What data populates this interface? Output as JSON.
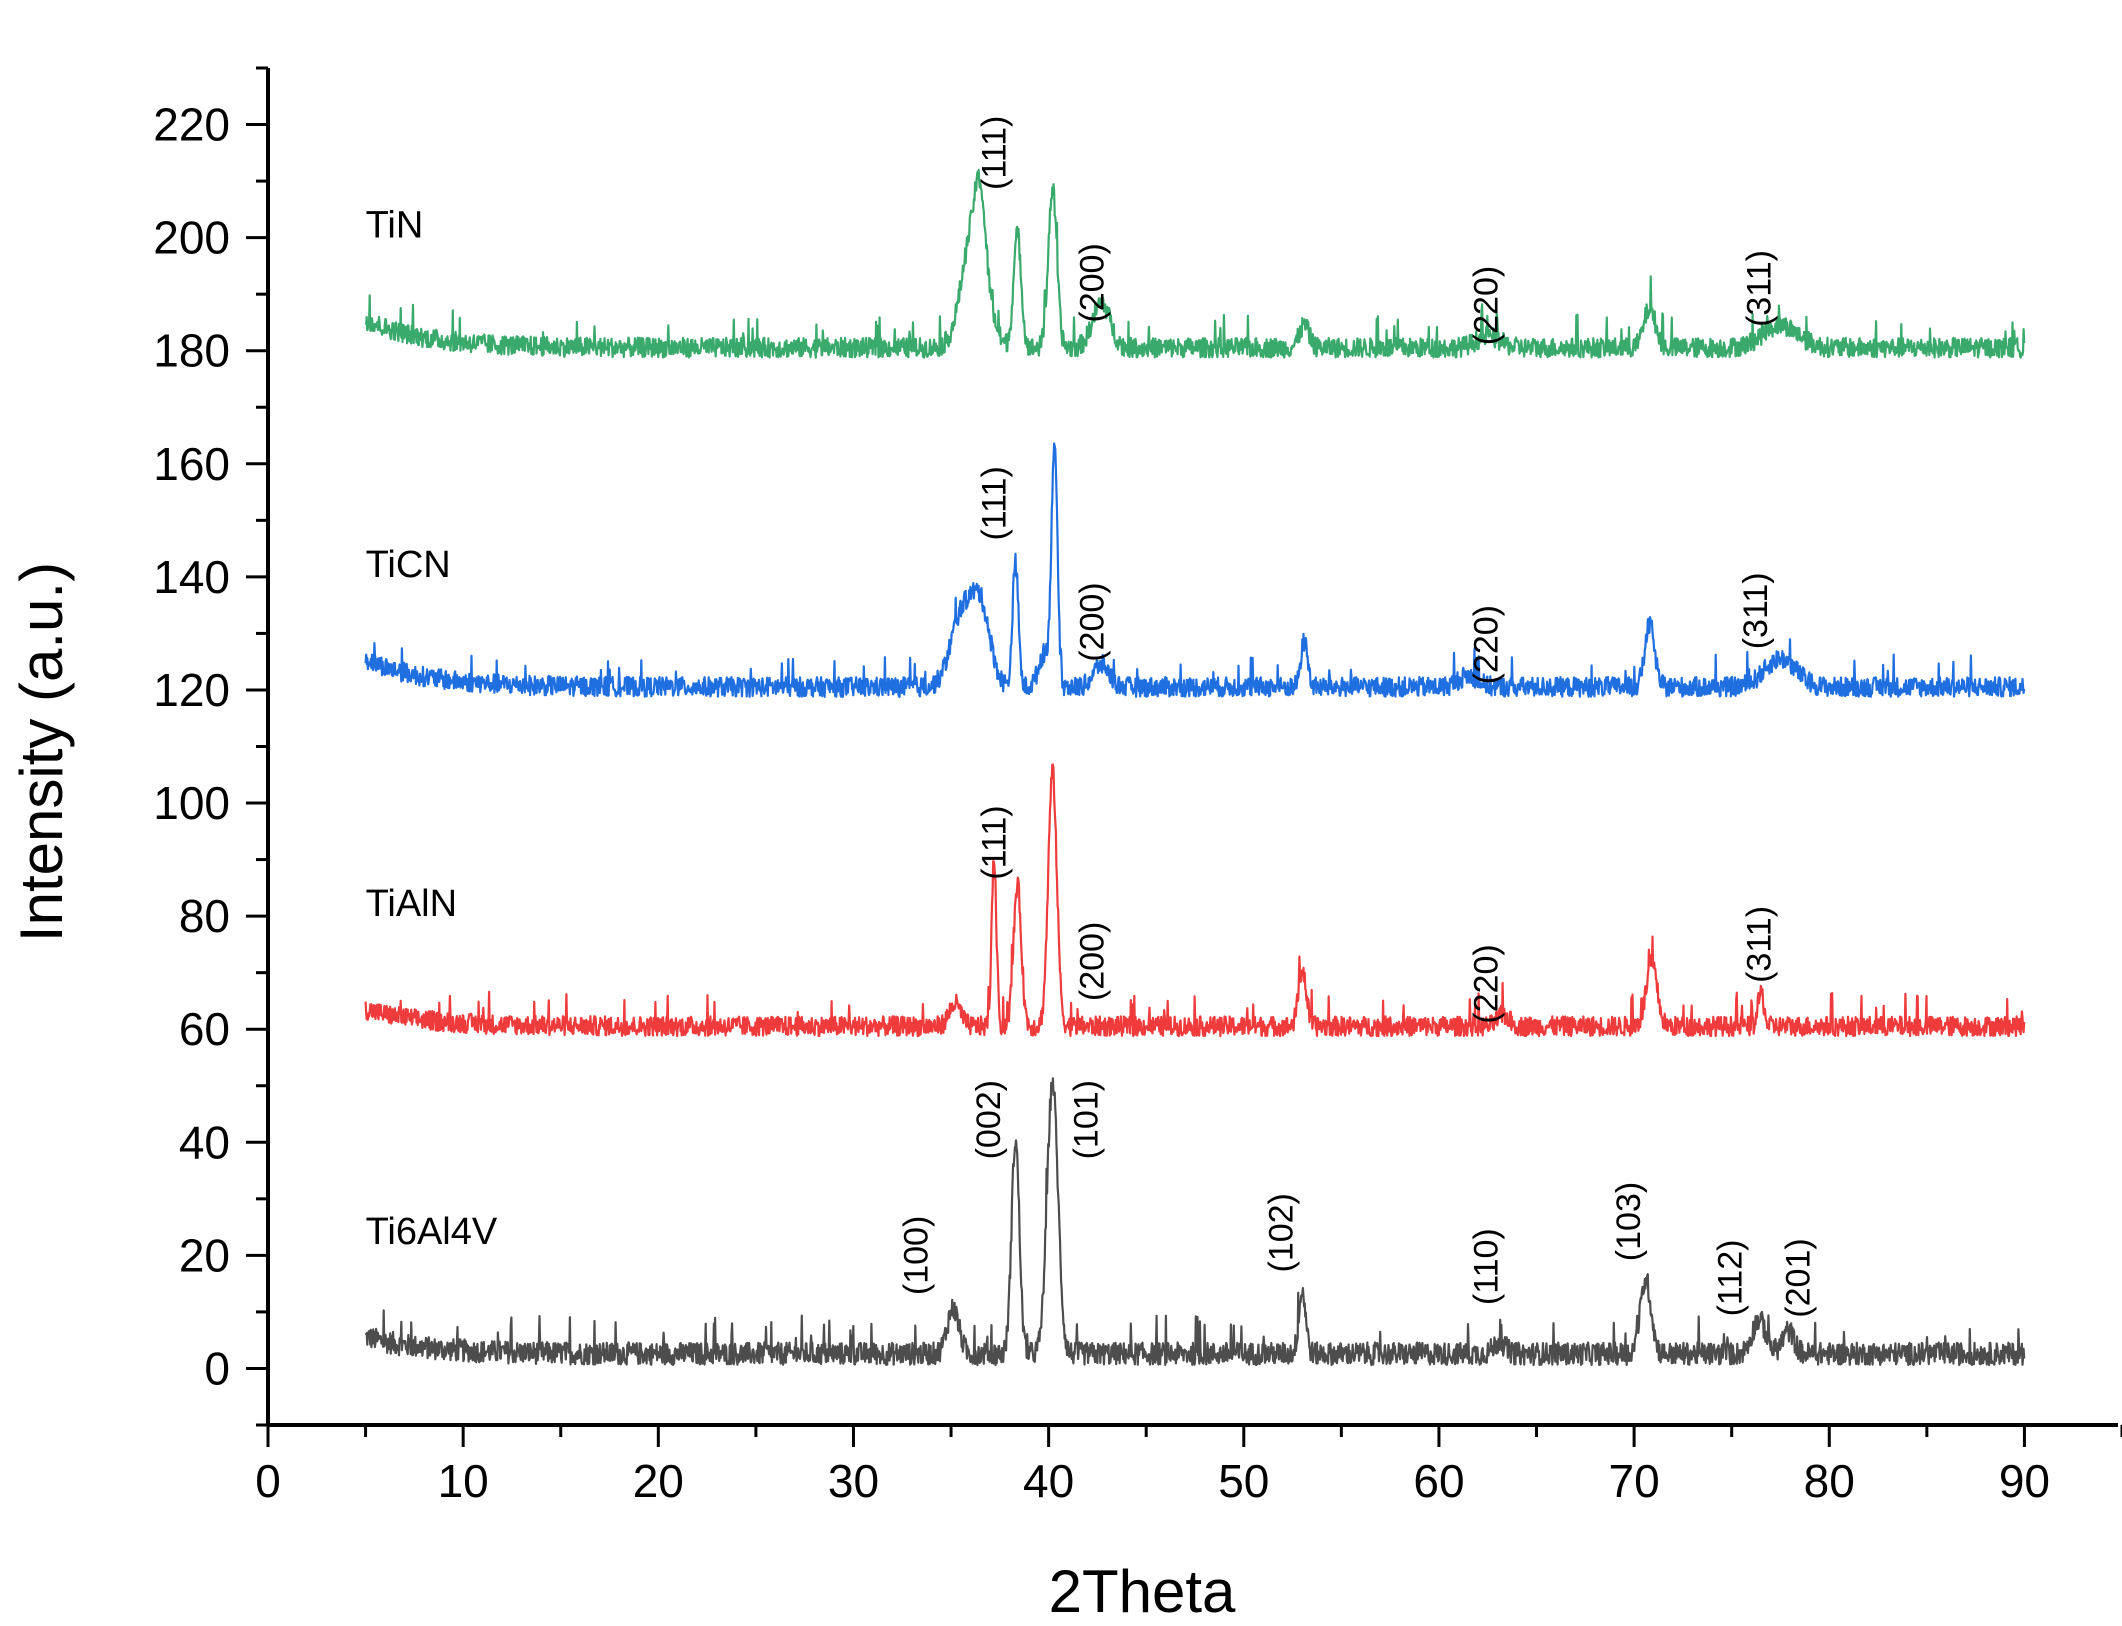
{
  "chart_data": {
    "type": "line",
    "title": "",
    "xlabel": "2Theta",
    "ylabel": "Intensity (a.u.)",
    "xlim": [
      0,
      95
    ],
    "ylim": [
      -10,
      230
    ],
    "xticks": [
      0,
      10,
      20,
      30,
      40,
      50,
      60,
      70,
      80,
      90
    ],
    "yticks": [
      0,
      20,
      40,
      60,
      80,
      100,
      120,
      140,
      160,
      180,
      200,
      220
    ],
    "series": [
      {
        "name": "Ti6Al4V",
        "color": "#4d4d4d",
        "baseline": 2,
        "start_level": 5,
        "noise": 4,
        "peaks": [
          [
            35.1,
            8,
            0.3
          ],
          [
            38.3,
            38,
            0.2
          ],
          [
            40.2,
            48,
            0.28
          ],
          [
            53.0,
            11,
            0.18
          ],
          [
            63.1,
            2,
            0.3
          ],
          [
            70.6,
            13,
            0.28
          ],
          [
            76.4,
            6,
            0.35
          ],
          [
            77.9,
            4,
            0.3
          ]
        ],
        "hkl": [
          {
            "text": "(100)",
            "x": 33.8,
            "y": 20
          },
          {
            "text": "(002)",
            "x": 37.5,
            "y": 44
          },
          {
            "text": "(101)",
            "x": 42.5,
            "y": 44
          },
          {
            "text": "(102)",
            "x": 52.5,
            "y": 24
          },
          {
            "text": "(110)",
            "x": 63.0,
            "y": 18
          },
          {
            "text": "(103)",
            "x": 70.3,
            "y": 26
          },
          {
            "text": "(112)",
            "x": 75.5,
            "y": 16
          },
          {
            "text": "(201)",
            "x": 79.0,
            "y": 16
          }
        ]
      },
      {
        "name": "TiAlN",
        "color": "#ef3b3b",
        "baseline": 60,
        "start_level": 63,
        "noise": 3.5,
        "peaks": [
          [
            35.2,
            4,
            0.3
          ],
          [
            37.2,
            30,
            0.12
          ],
          [
            38.4,
            25,
            0.2
          ],
          [
            40.2,
            45,
            0.22
          ],
          [
            53.0,
            10,
            0.2
          ],
          [
            63.3,
            2,
            0.3
          ],
          [
            70.9,
            11,
            0.28
          ],
          [
            76.5,
            6,
            0.15
          ]
        ],
        "hkl": [
          {
            "text": "(111)",
            "x": 37.8,
            "y": 93
          },
          {
            "text": "(200)",
            "x": 42.8,
            "y": 72
          },
          {
            "text": "(220)",
            "x": 63.0,
            "y": 68
          },
          {
            "text": "(311)",
            "x": 77.0,
            "y": 75
          }
        ]
      },
      {
        "name": "TiCN",
        "color": "#1f6fe0",
        "baseline": 120,
        "start_level": 125,
        "noise": 3.5,
        "peaks": [
          [
            35.5,
            12,
            0.55
          ],
          [
            36.5,
            14,
            0.5
          ],
          [
            38.3,
            22,
            0.15
          ],
          [
            39.8,
            6,
            0.3
          ],
          [
            40.3,
            42,
            0.15
          ],
          [
            42.7,
            4,
            0.4
          ],
          [
            53.1,
            8,
            0.18
          ],
          [
            61.5,
            2,
            0.5
          ],
          [
            70.8,
            11,
            0.25
          ],
          [
            77.5,
            5,
            0.8
          ]
        ],
        "hkl": [
          {
            "text": "(111)",
            "x": 37.8,
            "y": 153
          },
          {
            "text": "(200)",
            "x": 42.8,
            "y": 132
          },
          {
            "text": "(220)",
            "x": 63.0,
            "y": 128
          },
          {
            "text": "(311)",
            "x": 76.8,
            "y": 134
          }
        ]
      },
      {
        "name": "TiN",
        "color": "#3aaa6c",
        "baseline": 180,
        "start_level": 185,
        "noise": 3.5,
        "peaks": [
          [
            36.2,
            22,
            0.6
          ],
          [
            36.5,
            10,
            0.25
          ],
          [
            38.4,
            20,
            0.2
          ],
          [
            40.2,
            28,
            0.22
          ],
          [
            42.7,
            8,
            0.45
          ],
          [
            53.1,
            4,
            0.25
          ],
          [
            62.5,
            2,
            0.6
          ],
          [
            70.8,
            7,
            0.3
          ],
          [
            77.5,
            4,
            0.9
          ]
        ],
        "hkl": [
          {
            "text": "(111)",
            "x": 37.8,
            "y": 215
          },
          {
            "text": "(200)",
            "x": 42.8,
            "y": 192
          },
          {
            "text": "(220)",
            "x": 63.0,
            "y": 188
          },
          {
            "text": "(311)",
            "x": 77.0,
            "y": 191
          }
        ]
      }
    ]
  }
}
